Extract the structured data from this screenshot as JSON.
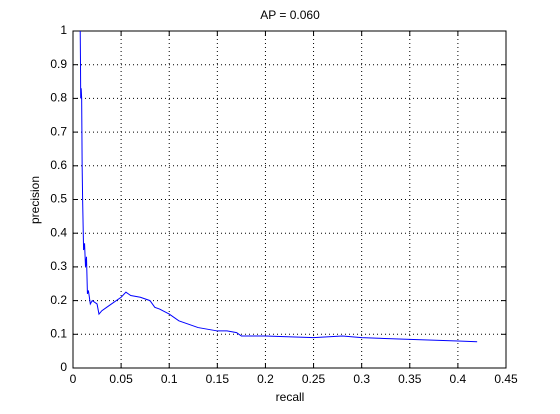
{
  "chart_data": {
    "type": "line",
    "title": "AP = 0.060",
    "x_label": "recall",
    "y_label": "precision",
    "x": [
      0.0075,
      0.0078,
      0.008,
      0.0085,
      0.009,
      0.0095,
      0.01,
      0.011,
      0.012,
      0.013,
      0.014,
      0.015,
      0.016,
      0.018,
      0.02,
      0.025,
      0.027,
      0.03,
      0.035,
      0.04,
      0.05,
      0.055,
      0.06,
      0.07,
      0.08,
      0.085,
      0.09,
      0.1,
      0.11,
      0.12,
      0.13,
      0.15,
      0.16,
      0.17,
      0.175,
      0.2,
      0.25,
      0.28,
      0.3,
      0.35,
      0.4,
      0.42
    ],
    "series": [
      {
        "name": "precision",
        "color": "#0000ff",
        "values": [
          1.0,
          0.9,
          0.8,
          0.83,
          0.8,
          0.6,
          0.5,
          0.35,
          0.37,
          0.3,
          0.33,
          0.22,
          0.23,
          0.19,
          0.2,
          0.19,
          0.16,
          0.17,
          0.18,
          0.19,
          0.21,
          0.225,
          0.215,
          0.21,
          0.2,
          0.18,
          0.175,
          0.16,
          0.14,
          0.13,
          0.12,
          0.11,
          0.11,
          0.105,
          0.095,
          0.095,
          0.09,
          0.095,
          0.09,
          0.085,
          0.08,
          0.078
        ]
      }
    ],
    "xlim": [
      0,
      0.45
    ],
    "xticks": [
      0,
      0.05,
      0.1,
      0.15,
      0.2,
      0.25,
      0.3,
      0.35,
      0.4,
      0.45
    ],
    "ylim": [
      0,
      1
    ],
    "yticks": [
      0,
      0.1,
      0.2,
      0.3,
      0.4,
      0.5,
      0.6,
      0.7,
      0.8,
      0.9,
      1
    ],
    "grid": true
  }
}
